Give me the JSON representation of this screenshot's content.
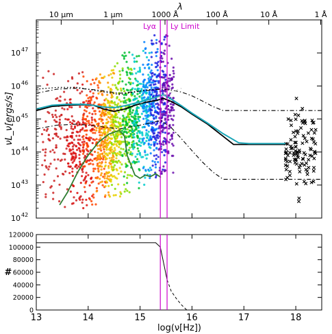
{
  "chart_data": [
    {
      "type": "scatter",
      "xlabel": "",
      "ylabel": "νL_ν[ergs/s]",
      "scale": "log-log",
      "xlim": [
        13.0,
        18.5
      ],
      "ylim": [
        1e+42,
        1e+48
      ],
      "grid": false,
      "y_tick_values": [
        1e+42,
        1e+43,
        1e+44,
        1e+45,
        1e+46,
        1e+47
      ],
      "y_tick_labels": [
        "10",
        "10",
        "10",
        "10",
        "10",
        "10"
      ],
      "y_tick_exponents": [
        "42",
        "43",
        "44",
        "45",
        "46",
        "47"
      ],
      "top_axis": {
        "label": "λ",
        "ticks": [
          {
            "label": "10 μm",
            "logfreq": 13.48
          },
          {
            "label": "1 μm",
            "logfreq": 14.48
          },
          {
            "label": "1000 Å",
            "logfreq": 15.48
          },
          {
            "label": "100 Å",
            "logfreq": 16.48
          },
          {
            "label": "10 Å",
            "logfreq": 17.48
          },
          {
            "label": "1 Å",
            "logfreq": 18.48
          }
        ]
      },
      "vertical_lines": [
        {
          "label": "Lyα",
          "logfreq": 15.39,
          "color": "#cc00cc"
        },
        {
          "label": "Ly Limit",
          "logfreq": 15.52,
          "color": "#cc00cc"
        }
      ],
      "colors": {
        "scatter_red": "#cc2222",
        "scatter_violet": "#6a0dad",
        "mean_sed": "#000000",
        "model_sed": "#1aa6b7",
        "green_sed": "#2e7d32",
        "dashed_sed": "#cccccc",
        "xray_points": "#000000",
        "vline": "#cc00cc"
      },
      "series": [
        {
          "style": "solid-black",
          "x": [
            13.0,
            13.3,
            13.6,
            13.9,
            14.1,
            14.3,
            14.5,
            14.7,
            14.9,
            15.1,
            15.3,
            15.45,
            15.6,
            15.8,
            16.0,
            16.3,
            16.6,
            16.8,
            17.1,
            17.4,
            17.8
          ],
          "y": [
            1.8e+45,
            2.4e+45,
            2.6e+45,
            2.7e+45,
            2.6e+45,
            2e+45,
            1.7e+45,
            2e+45,
            2.6e+45,
            3.2e+45,
            3.6e+45,
            4.2e+45,
            3.4e+45,
            2.3e+45,
            1.4e+45,
            7e+44,
            3e+44,
            1.7e+44,
            1.7e+44,
            1.7e+44,
            1.7e+44
          ]
        },
        {
          "style": "solid-cyan",
          "x": [
            13.0,
            13.3,
            13.6,
            13.9,
            14.1,
            14.3,
            14.5,
            14.7,
            14.9,
            15.1,
            15.3,
            15.45,
            15.6,
            15.8,
            16.0,
            16.3,
            16.6,
            16.9,
            17.1,
            17.4,
            17.8
          ],
          "y": [
            2e+45,
            2.6e+45,
            2.8e+45,
            2.8e+45,
            2.6e+45,
            2.3e+45,
            2.2e+45,
            2.5e+45,
            3e+45,
            3.6e+45,
            4.5e+45,
            5.5e+45,
            4e+45,
            2.5e+45,
            1.5e+45,
            7.5e+44,
            3.6e+44,
            1.9e+44,
            1.8e+44,
            1.8e+44,
            1.8e+44
          ]
        },
        {
          "style": "dashdot-upper",
          "x": [
            13.0,
            13.4,
            13.8,
            14.2,
            14.6,
            15.0,
            15.4,
            15.6,
            15.8,
            16.0,
            16.2,
            16.4,
            16.6,
            16.8,
            17.0,
            17.4,
            17.8,
            18.5
          ],
          "y": [
            6e+45,
            8e+45,
            8.5e+45,
            7.5e+45,
            6e+45,
            7e+45,
            8e+45,
            7.5e+45,
            6.5e+45,
            5e+45,
            3.5e+45,
            2.4e+45,
            1.8e+45,
            1.8e+45,
            1.8e+45,
            1.8e+45,
            1.8e+45,
            1.8e+45
          ]
        },
        {
          "style": "dashdot-lower",
          "x": [
            13.0,
            13.4,
            13.8,
            14.2,
            14.6,
            15.0,
            15.4,
            15.6,
            15.8,
            16.0,
            16.2,
            16.4,
            16.6,
            16.8,
            17.0,
            17.4,
            17.8,
            18.5
          ],
          "y": [
            5e+44,
            6.5e+44,
            7e+44,
            6e+44,
            5e+44,
            6.5e+44,
            9e+44,
            5.5e+44,
            2.5e+44,
            1.1e+44,
            5e+43,
            2.5e+43,
            1.5e+43,
            1.5e+43,
            1.5e+43,
            1.5e+43,
            1.5e+43,
            1.5e+43
          ]
        },
        {
          "style": "dotted",
          "x": [
            13.0,
            13.4,
            13.8,
            14.2,
            14.6,
            14.9,
            15.1,
            15.3
          ],
          "y": [
            8e+45,
            9e+45,
            9e+45,
            7e+45,
            5.5e+45,
            6.5e+45,
            7.5e+45,
            8e+45
          ]
        },
        {
          "style": "dashed-light",
          "x": [
            15.0,
            15.3,
            15.6,
            15.8
          ],
          "y": [
            3e+45,
            4.2e+45,
            6.5e+45,
            8.5e+45
          ]
        },
        {
          "style": "green",
          "x": [
            13.45,
            13.6,
            13.8,
            14.0,
            14.2,
            14.4,
            14.6,
            14.7,
            14.75,
            14.9,
            15.0,
            15.1,
            15.2,
            15.3,
            15.4
          ],
          "y": [
            2.5e+42,
            6e+42,
            2.5e+43,
            8e+43,
            2e+44,
            3.5e+44,
            4.5e+44,
            3e+44,
            8e+43,
            2e+43,
            1.6e+43,
            2e+43,
            1.8e+43,
            2.2e+43,
            1.7e+43
          ]
        }
      ],
      "scatter_bands": [
        {
          "color": "#cc2222",
          "x_range": [
            13.1,
            13.95
          ],
          "y_range": [
            2e+42,
            3e+46
          ]
        },
        {
          "color": "#dd1111",
          "x_range": [
            13.6,
            14.1
          ],
          "y_range": [
            2e+42,
            2e+46
          ]
        },
        {
          "color": "#ff4400",
          "x_range": [
            13.9,
            14.35
          ],
          "y_range": [
            2e+42,
            2e+46
          ]
        },
        {
          "color": "#ff9900",
          "x_range": [
            14.15,
            14.5
          ],
          "y_range": [
            3e+42,
            2.5e+46
          ]
        },
        {
          "color": "#e8d000",
          "x_range": [
            14.3,
            14.65
          ],
          "y_range": [
            4e+42,
            4e+46
          ]
        },
        {
          "color": "#88dd00",
          "x_range": [
            14.45,
            14.85
          ],
          "y_range": [
            5e+42,
            6e+46
          ]
        },
        {
          "color": "#00c030",
          "x_range": [
            14.65,
            15.0
          ],
          "y_range": [
            8e+42,
            1.2e+47
          ]
        },
        {
          "color": "#00cccc",
          "x_range": [
            14.85,
            15.2
          ],
          "y_range": [
            1e+43,
            1.8e+47
          ]
        },
        {
          "color": "#0080ff",
          "x_range": [
            15.05,
            15.35
          ],
          "y_range": [
            1.5e+43,
            3e+47
          ]
        },
        {
          "color": "#2020dd",
          "x_range": [
            15.2,
            15.5
          ],
          "y_range": [
            1.5e+43,
            3.5e+47
          ]
        },
        {
          "color": "#6a0dad",
          "x_range": [
            15.35,
            15.65
          ],
          "y_range": [
            2e+43,
            3.5e+47
          ]
        }
      ],
      "xray_points_region": {
        "x_range": [
          17.8,
          18.4
        ],
        "y_range": [
          3e+42,
          2e+46
        ],
        "marker": "x"
      }
    },
    {
      "type": "line",
      "xlabel": "log(ν[Hz])",
      "ylabel": "#",
      "xlim": [
        13,
        18.5
      ],
      "ylim": [
        0,
        120000
      ],
      "x_tick_labels": [
        "13",
        "14",
        "15",
        "16",
        "17",
        "18"
      ],
      "y_tick_labels": [
        "0",
        "20000",
        "40000",
        "60000",
        "80000",
        "100000",
        "120000"
      ],
      "vertical_lines": [
        {
          "logfreq": 15.39,
          "color": "#cc00cc"
        },
        {
          "logfreq": 15.52,
          "color": "#cc00cc"
        }
      ],
      "series": [
        {
          "style": "solid",
          "x": [
            13.0,
            15.0,
            15.3,
            15.39,
            15.52
          ],
          "y": [
            107000,
            107000,
            107000,
            100000,
            48000
          ]
        },
        {
          "style": "dashed",
          "x": [
            15.52,
            15.6,
            15.7,
            15.8,
            15.9
          ],
          "y": [
            48000,
            30000,
            18000,
            8000,
            0
          ]
        }
      ]
    }
  ]
}
